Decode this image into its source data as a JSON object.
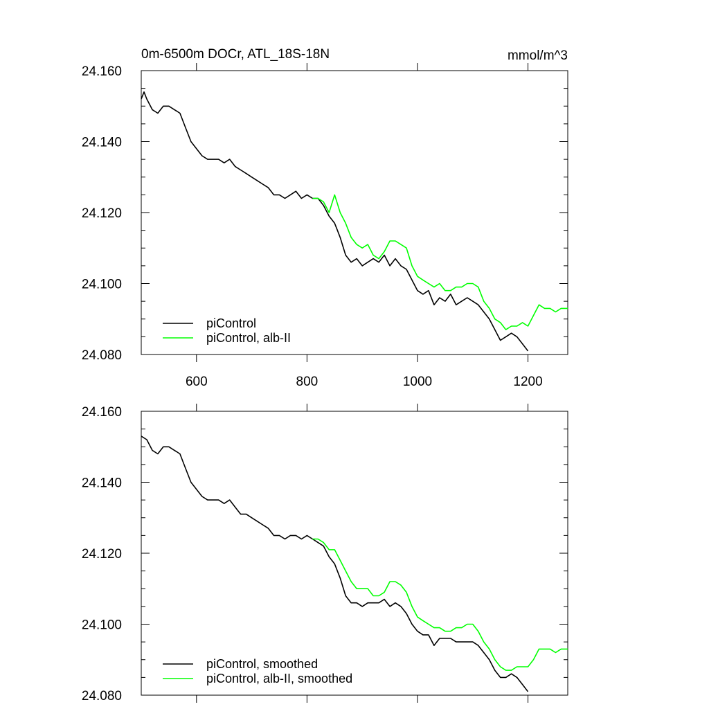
{
  "chart_data": [
    {
      "type": "line",
      "title_left": "0m-6500m DOCr, ATL_18S-18N",
      "title_right": "mmol/m^3",
      "xlim": [
        500,
        1272
      ],
      "ylim": [
        24.08,
        24.16
      ],
      "xticks": [
        600,
        800,
        1000,
        1200
      ],
      "xtick_labels": [
        "600",
        "800",
        "1000",
        "1200"
      ],
      "yticks": [
        24.08,
        24.1,
        24.12,
        24.14,
        24.16
      ],
      "ytick_labels": [
        "24.080",
        "24.100",
        "24.120",
        "24.140",
        "24.160"
      ],
      "legend_position": "bottom-left",
      "series": [
        {
          "name": "piControl",
          "color": "#000000",
          "x": [
            500,
            505,
            510,
            520,
            530,
            540,
            550,
            560,
            570,
            580,
            590,
            600,
            610,
            620,
            630,
            640,
            650,
            660,
            670,
            680,
            690,
            700,
            710,
            720,
            730,
            740,
            750,
            760,
            770,
            780,
            790,
            800,
            810,
            820,
            830,
            840,
            850,
            855,
            860,
            870,
            880,
            890,
            900,
            910,
            920,
            930,
            940,
            950,
            960,
            970,
            980,
            990,
            1000,
            1010,
            1020,
            1030,
            1040,
            1050,
            1060,
            1070,
            1080,
            1090,
            1100,
            1110,
            1120,
            1130,
            1140,
            1150,
            1160,
            1170,
            1180,
            1190,
            1200
          ],
          "y": [
            24.152,
            24.154,
            24.152,
            24.149,
            24.148,
            24.15,
            24.15,
            24.149,
            24.148,
            24.144,
            24.14,
            24.138,
            24.136,
            24.135,
            24.135,
            24.135,
            24.134,
            24.135,
            24.133,
            24.132,
            24.131,
            24.13,
            24.129,
            24.128,
            24.127,
            24.125,
            24.125,
            24.124,
            24.125,
            24.126,
            24.124,
            24.125,
            24.124,
            24.124,
            24.122,
            24.119,
            24.117,
            24.115,
            24.113,
            24.108,
            24.106,
            24.107,
            24.105,
            24.106,
            24.107,
            24.106,
            24.108,
            24.105,
            24.107,
            24.105,
            24.104,
            24.101,
            24.098,
            24.097,
            24.098,
            24.094,
            24.096,
            24.095,
            24.097,
            24.094,
            24.095,
            24.096,
            24.095,
            24.094,
            24.092,
            24.09,
            24.087,
            24.084,
            24.085,
            24.086,
            24.085,
            24.083,
            24.081
          ]
        },
        {
          "name": "piControl, alb-II",
          "color": "#00ff00",
          "x": [
            810,
            820,
            830,
            840,
            850,
            860,
            870,
            880,
            890,
            900,
            910,
            920,
            930,
            940,
            950,
            960,
            970,
            980,
            990,
            1000,
            1010,
            1020,
            1030,
            1040,
            1050,
            1060,
            1070,
            1080,
            1090,
            1100,
            1110,
            1120,
            1130,
            1140,
            1150,
            1160,
            1170,
            1180,
            1190,
            1200,
            1210,
            1220,
            1230,
            1240,
            1250,
            1260,
            1272
          ],
          "y": [
            24.124,
            24.124,
            24.123,
            24.12,
            24.125,
            24.12,
            24.117,
            24.113,
            24.111,
            24.11,
            24.111,
            24.108,
            24.107,
            24.109,
            24.112,
            24.112,
            24.111,
            24.11,
            24.105,
            24.102,
            24.101,
            24.1,
            24.099,
            24.1,
            24.098,
            24.098,
            24.099,
            24.099,
            24.1,
            24.1,
            24.099,
            24.095,
            24.093,
            24.09,
            24.089,
            24.087,
            24.088,
            24.088,
            24.089,
            24.088,
            24.091,
            24.094,
            24.093,
            24.093,
            24.092,
            24.093,
            24.093
          ]
        }
      ]
    },
    {
      "type": "line",
      "xlim": [
        500,
        1272
      ],
      "ylim": [
        24.08,
        24.16
      ],
      "xticks": [
        600,
        800,
        1000,
        1200
      ],
      "yticks": [
        24.08,
        24.1,
        24.12,
        24.14,
        24.16
      ],
      "ytick_labels": [
        "24.080",
        "24.100",
        "24.120",
        "24.140",
        "24.160"
      ],
      "legend_position": "bottom-left",
      "series": [
        {
          "name": "piControl, smoothed",
          "color": "#000000",
          "x": [
            500,
            510,
            520,
            530,
            540,
            550,
            560,
            570,
            580,
            590,
            600,
            610,
            620,
            630,
            640,
            650,
            660,
            670,
            680,
            690,
            700,
            710,
            720,
            730,
            740,
            750,
            760,
            770,
            780,
            790,
            800,
            810,
            820,
            830,
            840,
            850,
            860,
            870,
            880,
            890,
            900,
            910,
            920,
            930,
            940,
            950,
            960,
            970,
            980,
            990,
            1000,
            1010,
            1020,
            1030,
            1040,
            1050,
            1060,
            1070,
            1080,
            1090,
            1100,
            1110,
            1120,
            1130,
            1140,
            1150,
            1160,
            1170,
            1180,
            1190,
            1200
          ],
          "y": [
            24.153,
            24.152,
            24.149,
            24.148,
            24.15,
            24.15,
            24.149,
            24.148,
            24.144,
            24.14,
            24.138,
            24.136,
            24.135,
            24.135,
            24.135,
            24.134,
            24.135,
            24.133,
            24.131,
            24.131,
            24.13,
            24.129,
            24.128,
            24.127,
            24.125,
            24.125,
            24.124,
            24.125,
            24.125,
            24.124,
            24.125,
            24.124,
            24.123,
            24.122,
            24.119,
            24.117,
            24.113,
            24.108,
            24.106,
            24.106,
            24.105,
            24.106,
            24.106,
            24.106,
            24.107,
            24.105,
            24.106,
            24.105,
            24.103,
            24.1,
            24.098,
            24.097,
            24.097,
            24.094,
            24.096,
            24.096,
            24.096,
            24.095,
            24.095,
            24.095,
            24.095,
            24.094,
            24.092,
            24.09,
            24.087,
            24.085,
            24.085,
            24.086,
            24.085,
            24.083,
            24.081
          ]
        },
        {
          "name": "piControl, alb-II, smoothed",
          "color": "#00ff00",
          "x": [
            810,
            820,
            830,
            840,
            850,
            860,
            870,
            880,
            890,
            900,
            910,
            920,
            930,
            940,
            950,
            960,
            970,
            980,
            990,
            1000,
            1010,
            1020,
            1030,
            1040,
            1050,
            1060,
            1070,
            1080,
            1090,
            1100,
            1110,
            1120,
            1130,
            1140,
            1150,
            1160,
            1170,
            1180,
            1190,
            1200,
            1210,
            1220,
            1230,
            1240,
            1250,
            1260,
            1272
          ],
          "y": [
            24.124,
            24.124,
            24.123,
            24.121,
            24.121,
            24.118,
            24.115,
            24.112,
            24.11,
            24.11,
            24.11,
            24.108,
            24.108,
            24.109,
            24.112,
            24.112,
            24.111,
            24.109,
            24.105,
            24.102,
            24.101,
            24.1,
            24.099,
            24.099,
            24.098,
            24.098,
            24.099,
            24.099,
            24.1,
            24.1,
            24.098,
            24.095,
            24.093,
            24.09,
            24.088,
            24.087,
            24.087,
            24.088,
            24.088,
            24.088,
            24.09,
            24.093,
            24.093,
            24.093,
            24.092,
            24.093,
            24.093
          ]
        }
      ]
    }
  ]
}
